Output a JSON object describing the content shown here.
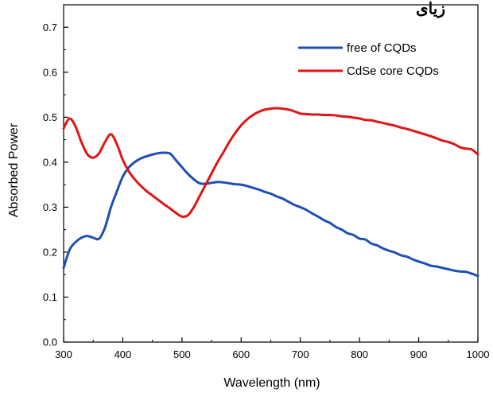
{
  "top_text": "زیای",
  "chart_data": {
    "type": "line",
    "xlabel": "Wavelength (nm)",
    "ylabel": "Absorbed Power",
    "xlim": [
      300,
      1000
    ],
    "ylim": [
      0.0,
      0.75
    ],
    "xticks": [
      300,
      400,
      500,
      600,
      700,
      800,
      900,
      1000
    ],
    "yticks": [
      0.0,
      0.1,
      0.2,
      0.3,
      0.4,
      0.5,
      0.6,
      0.7
    ],
    "ytick_labels": [
      "0.0",
      "0.1",
      "0.2",
      "0.3",
      "0.4",
      "0.5",
      "0.6",
      "0.7"
    ],
    "legend_position": "top-right",
    "grid": false,
    "series": [
      {
        "name": "free of CQDs",
        "color": "#1f4fb4",
        "x": [
          300,
          310,
          320,
          330,
          340,
          350,
          360,
          370,
          380,
          390,
          400,
          410,
          420,
          430,
          440,
          450,
          460,
          470,
          480,
          490,
          500,
          510,
          520,
          530,
          540,
          550,
          560,
          570,
          580,
          590,
          600,
          610,
          620,
          630,
          640,
          650,
          660,
          670,
          680,
          690,
          700,
          710,
          720,
          730,
          740,
          750,
          760,
          770,
          780,
          790,
          800,
          810,
          820,
          830,
          840,
          850,
          860,
          870,
          880,
          890,
          900,
          910,
          920,
          930,
          940,
          950,
          960,
          970,
          980,
          990,
          1000
        ],
        "y": [
          0.165,
          0.205,
          0.222,
          0.232,
          0.236,
          0.232,
          0.23,
          0.255,
          0.3,
          0.335,
          0.368,
          0.388,
          0.4,
          0.408,
          0.413,
          0.417,
          0.42,
          0.421,
          0.419,
          0.404,
          0.389,
          0.374,
          0.362,
          0.353,
          0.352,
          0.354,
          0.356,
          0.355,
          0.353,
          0.351,
          0.35,
          0.347,
          0.343,
          0.339,
          0.334,
          0.33,
          0.324,
          0.319,
          0.312,
          0.305,
          0.3,
          0.294,
          0.286,
          0.279,
          0.271,
          0.265,
          0.256,
          0.25,
          0.242,
          0.238,
          0.23,
          0.228,
          0.219,
          0.215,
          0.208,
          0.203,
          0.199,
          0.193,
          0.19,
          0.184,
          0.179,
          0.175,
          0.17,
          0.168,
          0.165,
          0.162,
          0.159,
          0.157,
          0.156,
          0.152,
          0.147
        ]
      },
      {
        "name": "CdSe core CQDs",
        "color": "#e01515",
        "x": [
          300,
          310,
          320,
          330,
          340,
          350,
          360,
          370,
          380,
          390,
          400,
          410,
          420,
          430,
          440,
          450,
          460,
          470,
          480,
          490,
          500,
          510,
          520,
          530,
          540,
          550,
          560,
          570,
          580,
          590,
          600,
          610,
          620,
          630,
          640,
          650,
          660,
          670,
          680,
          690,
          700,
          710,
          720,
          730,
          740,
          750,
          760,
          770,
          780,
          790,
          800,
          810,
          820,
          830,
          840,
          850,
          860,
          870,
          880,
          890,
          900,
          910,
          920,
          930,
          940,
          950,
          960,
          970,
          980,
          990,
          1000
        ],
        "y": [
          0.475,
          0.497,
          0.48,
          0.445,
          0.418,
          0.41,
          0.42,
          0.445,
          0.462,
          0.44,
          0.405,
          0.38,
          0.362,
          0.348,
          0.336,
          0.326,
          0.316,
          0.306,
          0.297,
          0.287,
          0.279,
          0.282,
          0.3,
          0.325,
          0.35,
          0.375,
          0.4,
          0.422,
          0.445,
          0.465,
          0.482,
          0.495,
          0.505,
          0.512,
          0.517,
          0.519,
          0.52,
          0.519,
          0.517,
          0.513,
          0.508,
          0.507,
          0.506,
          0.506,
          0.505,
          0.505,
          0.504,
          0.502,
          0.501,
          0.499,
          0.497,
          0.494,
          0.493,
          0.49,
          0.487,
          0.484,
          0.481,
          0.477,
          0.474,
          0.47,
          0.466,
          0.462,
          0.458,
          0.453,
          0.448,
          0.445,
          0.44,
          0.433,
          0.43,
          0.428,
          0.417
        ]
      }
    ]
  }
}
